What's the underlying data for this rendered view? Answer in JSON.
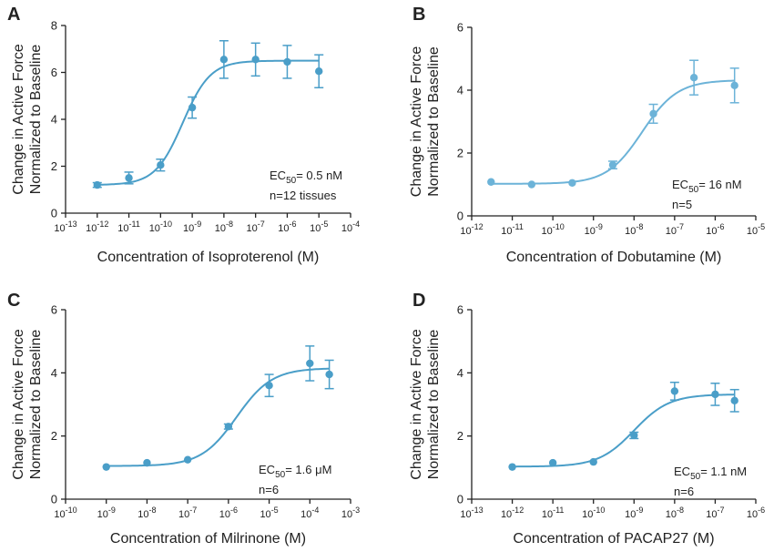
{
  "chart_data": [
    {
      "type": "scatter",
      "panel": "A",
      "xlabel": "Concentration of Isoproterenol (M)",
      "ylabel_lines": [
        "Change in Active Force",
        "Normalized to Baseline"
      ],
      "x_scale": "log",
      "x_exponents": [
        -13,
        -12,
        -11,
        -10,
        -9,
        -8,
        -7,
        -6,
        -5,
        -4
      ],
      "ylim": [
        0,
        8
      ],
      "yticks": [
        0,
        2,
        4,
        6,
        8
      ],
      "ec50": {
        "prefix": "EC",
        "sub": "50",
        "text": "= 0.5 nM"
      },
      "note": "n=12 tissues",
      "fit": {
        "bottom": 1.2,
        "top": 6.5,
        "log_ec50": -9.3,
        "hill": 1.0
      },
      "points": [
        {
          "x": 1e-12,
          "y": 1.2,
          "err": 0.1
        },
        {
          "x": 1e-11,
          "y": 1.5,
          "err": 0.25
        },
        {
          "x": 1e-10,
          "y": 2.05,
          "err": 0.25
        },
        {
          "x": 1e-09,
          "y": 4.5,
          "err": 0.45
        },
        {
          "x": 1e-08,
          "y": 6.55,
          "err": 0.8
        },
        {
          "x": 1e-07,
          "y": 6.55,
          "err": 0.7
        },
        {
          "x": 1e-06,
          "y": 6.45,
          "err": 0.7
        },
        {
          "x": 1e-05,
          "y": 6.05,
          "err": 0.7
        }
      ],
      "color": "#4a9ec8"
    },
    {
      "type": "scatter",
      "panel": "B",
      "xlabel": "Concentration of Dobutamine (M)",
      "ylabel_lines": [
        "Change in Active Force",
        "Normalized to Baseline"
      ],
      "x_scale": "log",
      "x_exponents": [
        -12,
        -11,
        -10,
        -9,
        -8,
        -7,
        -6,
        -5
      ],
      "ylim": [
        0,
        6
      ],
      "yticks": [
        0,
        2,
        4,
        6
      ],
      "ec50": {
        "prefix": "EC",
        "sub": "50",
        "text": "= 16 nM"
      },
      "note": "n=5",
      "fit": {
        "bottom": 1.02,
        "top": 4.32,
        "log_ec50": -7.8,
        "hill": 1.0
      },
      "points": [
        {
          "x": 3e-12,
          "y": 1.08,
          "err": 0.04
        },
        {
          "x": 3e-11,
          "y": 1.0,
          "err": 0.04
        },
        {
          "x": 3e-10,
          "y": 1.05,
          "err": 0.04
        },
        {
          "x": 3e-09,
          "y": 1.62,
          "err": 0.12
        },
        {
          "x": 3e-08,
          "y": 3.25,
          "err": 0.3
        },
        {
          "x": 3e-07,
          "y": 4.4,
          "err": 0.55
        },
        {
          "x": 3e-06,
          "y": 4.15,
          "err": 0.55
        }
      ],
      "color": "#6cb3d8"
    },
    {
      "type": "scatter",
      "panel": "C",
      "xlabel": "Concentration of Milrinone (M)",
      "ylabel_lines": [
        "Change in Active Force",
        "Normalized to Baseline"
      ],
      "x_scale": "log",
      "x_exponents": [
        -10,
        -9,
        -8,
        -7,
        -6,
        -5,
        -4,
        -3
      ],
      "ylim": [
        0,
        6
      ],
      "yticks": [
        0,
        2,
        4,
        6
      ],
      "ec50": {
        "prefix": "EC",
        "sub": "50",
        "text": "= 1.6 μM"
      },
      "note": "n=6",
      "fit": {
        "bottom": 1.05,
        "top": 4.15,
        "log_ec50": -5.8,
        "hill": 1.0
      },
      "points": [
        {
          "x": 1e-09,
          "y": 1.02,
          "err": 0.04
        },
        {
          "x": 1e-08,
          "y": 1.15,
          "err": 0.05
        },
        {
          "x": 1e-07,
          "y": 1.25,
          "err": 0.06
        },
        {
          "x": 1e-06,
          "y": 2.3,
          "err": 0.08
        },
        {
          "x": 1e-05,
          "y": 3.6,
          "err": 0.35
        },
        {
          "x": 0.0001,
          "y": 4.3,
          "err": 0.55
        },
        {
          "x": 0.0003,
          "y": 3.95,
          "err": 0.45
        }
      ],
      "color": "#4a9ec8"
    },
    {
      "type": "scatter",
      "panel": "D",
      "xlabel": "Concentration of PACAP27 (M)",
      "ylabel_lines": [
        "Change in Active Force",
        "Normalized to Baseline"
      ],
      "x_scale": "log",
      "x_exponents": [
        -13,
        -12,
        -11,
        -10,
        -9,
        -8,
        -7,
        -6
      ],
      "ylim": [
        0,
        6
      ],
      "yticks": [
        0,
        2,
        4,
        6
      ],
      "ec50": {
        "prefix": "EC",
        "sub": "50",
        "text": "= 1.1 nM"
      },
      "note": "n=6",
      "fit": {
        "bottom": 1.03,
        "top": 3.32,
        "log_ec50": -9.0,
        "hill": 1.0
      },
      "points": [
        {
          "x": 1e-12,
          "y": 1.02,
          "err": 0.04
        },
        {
          "x": 1e-11,
          "y": 1.15,
          "err": 0.05
        },
        {
          "x": 1e-10,
          "y": 1.18,
          "err": 0.05
        },
        {
          "x": 1e-09,
          "y": 2.02,
          "err": 0.1
        },
        {
          "x": 1e-08,
          "y": 3.42,
          "err": 0.28
        },
        {
          "x": 1e-07,
          "y": 3.32,
          "err": 0.35
        },
        {
          "x": 3e-07,
          "y": 3.12,
          "err": 0.35
        }
      ],
      "color": "#4a9ec8"
    }
  ]
}
